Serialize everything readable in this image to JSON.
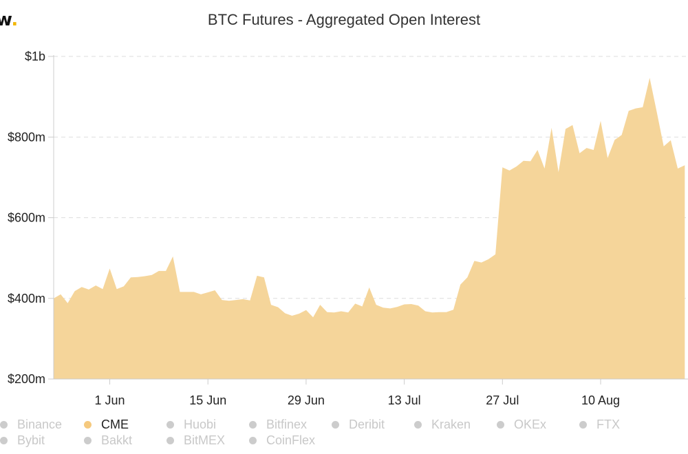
{
  "brand": {
    "logo_text": "w",
    "logo_dot": "."
  },
  "chart_data": {
    "type": "area",
    "title": "BTC Futures - Aggregated Open Interest",
    "xlabel": "",
    "ylabel": "",
    "ylim": [
      200000000,
      1000000000
    ],
    "y_ticks": [
      {
        "value": 200000000,
        "label": "$200m"
      },
      {
        "value": 400000000,
        "label": "$400m"
      },
      {
        "value": 600000000,
        "label": "$600m"
      },
      {
        "value": 800000000,
        "label": "$800m"
      },
      {
        "value": 1000000000,
        "label": "$1b"
      }
    ],
    "x_ticks": [
      {
        "date": "2020-06-01",
        "label": "1 Jun"
      },
      {
        "date": "2020-06-15",
        "label": "15 Jun"
      },
      {
        "date": "2020-06-29",
        "label": "29 Jun"
      },
      {
        "date": "2020-07-13",
        "label": "13 Jul"
      },
      {
        "date": "2020-07-27",
        "label": "27 Jul"
      },
      {
        "date": "2020-08-10",
        "label": "10 Aug"
      }
    ],
    "x_range": [
      "2020-05-24",
      "2020-08-21"
    ],
    "grid": true,
    "series": [
      {
        "name": "CME",
        "color": "#f5d59a",
        "points": [
          [
            "2020-05-24",
            400
          ],
          [
            "2020-05-25",
            410
          ],
          [
            "2020-05-26",
            388
          ],
          [
            "2020-05-27",
            418
          ],
          [
            "2020-05-28",
            428
          ],
          [
            "2020-05-29",
            422
          ],
          [
            "2020-05-30",
            432
          ],
          [
            "2020-05-31",
            423
          ],
          [
            "2020-06-01",
            474
          ],
          [
            "2020-06-02",
            423
          ],
          [
            "2020-06-03",
            430
          ],
          [
            "2020-06-04",
            452
          ],
          [
            "2020-06-05",
            453
          ],
          [
            "2020-06-06",
            455
          ],
          [
            "2020-06-07",
            458
          ],
          [
            "2020-06-08",
            468
          ],
          [
            "2020-06-09",
            468
          ],
          [
            "2020-06-10",
            504
          ],
          [
            "2020-06-11",
            416
          ],
          [
            "2020-06-12",
            416
          ],
          [
            "2020-06-13",
            416
          ],
          [
            "2020-06-14",
            410
          ],
          [
            "2020-06-15",
            415
          ],
          [
            "2020-06-16",
            420
          ],
          [
            "2020-06-17",
            396
          ],
          [
            "2020-06-18",
            394
          ],
          [
            "2020-06-19",
            396
          ],
          [
            "2020-06-20",
            398
          ],
          [
            "2020-06-21",
            395
          ],
          [
            "2020-06-22",
            456
          ],
          [
            "2020-06-23",
            452
          ],
          [
            "2020-06-24",
            384
          ],
          [
            "2020-06-25",
            378
          ],
          [
            "2020-06-26",
            363
          ],
          [
            "2020-06-27",
            357
          ],
          [
            "2020-06-28",
            362
          ],
          [
            "2020-06-29",
            371
          ],
          [
            "2020-06-30",
            353
          ],
          [
            "2020-07-01",
            384
          ],
          [
            "2020-07-02",
            366
          ],
          [
            "2020-07-03",
            365
          ],
          [
            "2020-07-04",
            368
          ],
          [
            "2020-07-05",
            365
          ],
          [
            "2020-07-06",
            387
          ],
          [
            "2020-07-07",
            380
          ],
          [
            "2020-07-08",
            427
          ],
          [
            "2020-07-09",
            384
          ],
          [
            "2020-07-10",
            377
          ],
          [
            "2020-07-11",
            375
          ],
          [
            "2020-07-12",
            379
          ],
          [
            "2020-07-13",
            385
          ],
          [
            "2020-07-14",
            386
          ],
          [
            "2020-07-15",
            382
          ],
          [
            "2020-07-16",
            368
          ],
          [
            "2020-07-17",
            365
          ],
          [
            "2020-07-18",
            366
          ],
          [
            "2020-07-19",
            366
          ],
          [
            "2020-07-20",
            372
          ],
          [
            "2020-07-21",
            434
          ],
          [
            "2020-07-22",
            452
          ],
          [
            "2020-07-23",
            493
          ],
          [
            "2020-07-24",
            489
          ],
          [
            "2020-07-25",
            497
          ],
          [
            "2020-07-26",
            509
          ],
          [
            "2020-07-27",
            725
          ],
          [
            "2020-07-28",
            717
          ],
          [
            "2020-07-29",
            727
          ],
          [
            "2020-07-30",
            741
          ],
          [
            "2020-07-31",
            740
          ],
          [
            "2020-08-01",
            768
          ],
          [
            "2020-08-02",
            722
          ],
          [
            "2020-08-03",
            823
          ],
          [
            "2020-08-04",
            713
          ],
          [
            "2020-08-05",
            820
          ],
          [
            "2020-08-06",
            830
          ],
          [
            "2020-08-07",
            760
          ],
          [
            "2020-08-08",
            773
          ],
          [
            "2020-08-09",
            768
          ],
          [
            "2020-08-10",
            840
          ],
          [
            "2020-08-11",
            748
          ],
          [
            "2020-08-12",
            793
          ],
          [
            "2020-08-13",
            805
          ],
          [
            "2020-08-14",
            865
          ],
          [
            "2020-08-15",
            871
          ],
          [
            "2020-08-16",
            874
          ],
          [
            "2020-08-17",
            947
          ],
          [
            "2020-08-18",
            863
          ],
          [
            "2020-08-19",
            777
          ],
          [
            "2020-08-20",
            792
          ],
          [
            "2020-08-21",
            722
          ],
          [
            "2020-08-22",
            730
          ]
        ]
      }
    ]
  },
  "legend": {
    "items": [
      {
        "label": "Binance",
        "active": false
      },
      {
        "label": "CME",
        "active": true,
        "color": "#f5c97e"
      },
      {
        "label": "Huobi",
        "active": false
      },
      {
        "label": "Bitfinex",
        "active": false
      },
      {
        "label": "Deribit",
        "active": false
      },
      {
        "label": "Kraken",
        "active": false
      },
      {
        "label": "OKEx",
        "active": false
      },
      {
        "label": "FTX",
        "active": false
      },
      {
        "label": "Bybit",
        "active": false
      },
      {
        "label": "Bakkt",
        "active": false
      },
      {
        "label": "BitMEX",
        "active": false
      },
      {
        "label": "CoinFlex",
        "active": false
      }
    ]
  }
}
